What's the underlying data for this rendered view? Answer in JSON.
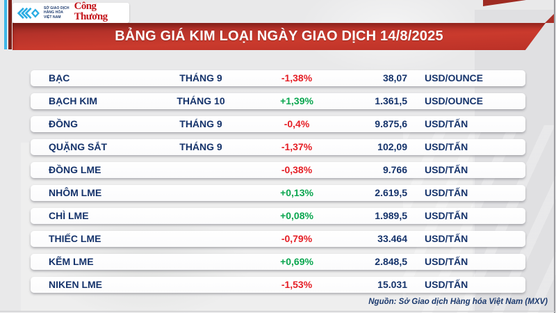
{
  "header": {
    "mxv_org_name": "SỞ GIAO DỊCH\nHÀNG HÓA\nVIỆT NAM",
    "congthuong_name": "Công Thương",
    "title": "BẢNG GIÁ KIM LOẠI NGÀY GIAO DỊCH 14/8/2025"
  },
  "table": {
    "rows": [
      {
        "name": "BẠC",
        "month": "THÁNG 9",
        "change": "-1,38%",
        "direction": "down",
        "price": "38,07",
        "unit": "USD/OUNCE"
      },
      {
        "name": "BẠCH KIM",
        "month": "THÁNG 10",
        "change": "+1,39%",
        "direction": "up",
        "price": "1.361,5",
        "unit": "USD/OUNCE"
      },
      {
        "name": "ĐỒNG",
        "month": "THÁNG 9",
        "change": "-0,4%",
        "direction": "down",
        "price": "9.875,6",
        "unit": "USD/TẤN"
      },
      {
        "name": "QUẶNG SẮT",
        "month": "THÁNG 9",
        "change": "-1,37%",
        "direction": "down",
        "price": "102,09",
        "unit": "USD/TẤN"
      },
      {
        "name": "ĐỒNG LME",
        "month": "",
        "change": "-0,38%",
        "direction": "down",
        "price": "9.766",
        "unit": "USD/TẤN"
      },
      {
        "name": "NHÔM LME",
        "month": "",
        "change": "+0,13%",
        "direction": "up",
        "price": "2.619,5",
        "unit": "USD/TẤN"
      },
      {
        "name": "CHÌ LME",
        "month": "",
        "change": "+0,08%",
        "direction": "up",
        "price": "1.989,5",
        "unit": "USD/TẤN"
      },
      {
        "name": "THIẾC LME",
        "month": "",
        "change": "-0,79%",
        "direction": "down",
        "price": "33.464",
        "unit": "USD/TẤN"
      },
      {
        "name": "KẼM LME",
        "month": "",
        "change": "+0,69%",
        "direction": "up",
        "price": "2.848,5",
        "unit": "USD/TẤN"
      },
      {
        "name": "NIKEN LME",
        "month": "",
        "change": "-1,53%",
        "direction": "down",
        "price": "15.031",
        "unit": "USD/TẤN"
      }
    ]
  },
  "footer": {
    "source": "Nguồn: Sở Giao dịch Hàng hóa Việt Nam (MXV)"
  },
  "colors": {
    "banner_red": "#c23428",
    "navy_text": "#15336b",
    "change_up_green": "#0aa64f",
    "change_down_red": "#e51e25",
    "mxv_logo_blue": "#2aace3",
    "congthuong_red": "#c4161c"
  },
  "chart_data": {
    "type": "table",
    "title": "BẢNG GIÁ KIM LOẠI NGÀY GIAO DỊCH 14/8/2025",
    "rows": [
      [
        "BẠC",
        "THÁNG 9",
        "-1,38%",
        "38,07",
        "USD/OUNCE"
      ],
      [
        "BẠCH KIM",
        "THÁNG 10",
        "+1,39%",
        "1.361,5",
        "USD/OUNCE"
      ],
      [
        "ĐỒNG",
        "THÁNG 9",
        "-0,4%",
        "9.875,6",
        "USD/TẤN"
      ],
      [
        "QUẶNG SẮT",
        "THÁNG 9",
        "-1,37%",
        "102,09",
        "USD/TẤN"
      ],
      [
        "ĐỒNG LME",
        "",
        "-0,38%",
        "9.766",
        "USD/TẤN"
      ],
      [
        "NHÔM LME",
        "",
        "+0,13%",
        "2.619,5",
        "USD/TẤN"
      ],
      [
        "CHÌ LME",
        "",
        "+0,08%",
        "1.989,5",
        "USD/TẤN"
      ],
      [
        "THIẾC LME",
        "",
        "-0,79%",
        "33.464",
        "USD/TẤN"
      ],
      [
        "KẼM LME",
        "",
        "+0,69%",
        "2.848,5",
        "USD/TẤN"
      ],
      [
        "NIKEN LME",
        "",
        "-1,53%",
        "15.031",
        "USD/TẤN"
      ]
    ],
    "source_note": "Nguồn: Sở Giao dịch Hàng hóa Việt Nam (MXV)"
  }
}
